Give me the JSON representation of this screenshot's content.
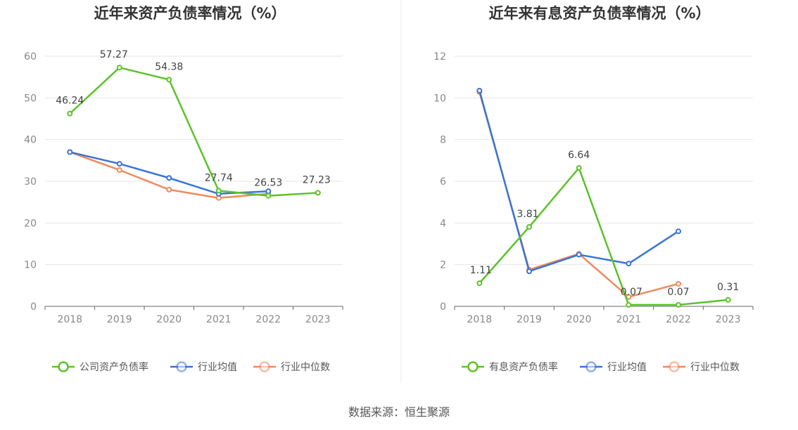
{
  "source_text": "数据来源：恒生聚源",
  "chart_data": [
    {
      "type": "line",
      "title": "近年来资产负债率情况（%）",
      "categories": [
        "2018",
        "2019",
        "2020",
        "2021",
        "2022",
        "2023"
      ],
      "ylim": [
        0,
        60
      ],
      "yticks": [
        0,
        10,
        20,
        30,
        40,
        50,
        60
      ],
      "grid": true,
      "legend_position": "bottom",
      "series": [
        {
          "name": "公司资产负债率",
          "color": "#5cc229",
          "values": [
            46.24,
            57.27,
            54.38,
            27.74,
            26.53,
            27.23
          ],
          "labels": [
            "46.24",
            "57.27",
            "54.38",
            "27.74",
            "26.53",
            "27.23"
          ]
        },
        {
          "name": "行业均值",
          "color": "#3a74d6",
          "values": [
            37.0,
            34.2,
            30.8,
            27.0,
            27.6,
            null
          ]
        },
        {
          "name": "行业中位数",
          "color": "#ef8a5d",
          "values": [
            37.0,
            32.7,
            28.0,
            26.0,
            27.0,
            null
          ]
        }
      ]
    },
    {
      "type": "line",
      "title": "近年来有息资产负债率情况（%）",
      "categories": [
        "2018",
        "2019",
        "2020",
        "2021",
        "2022",
        "2023"
      ],
      "ylim": [
        0,
        12
      ],
      "yticks": [
        0,
        2,
        4,
        6,
        8,
        10,
        12
      ],
      "grid": true,
      "legend_position": "bottom",
      "series": [
        {
          "name": "有息资产负债率",
          "color": "#5cc229",
          "values": [
            1.11,
            3.81,
            6.64,
            0.07,
            0.07,
            0.31
          ],
          "labels": [
            "1.11",
            "3.81",
            "6.64",
            "0.07",
            "0.07",
            "0.31"
          ]
        },
        {
          "name": "行业均值",
          "color": "#3a74d6",
          "values": [
            10.35,
            1.68,
            2.48,
            2.05,
            3.6,
            null
          ]
        },
        {
          "name": "行业中位数",
          "color": "#ef8a5d",
          "values": [
            10.28,
            1.76,
            2.52,
            0.45,
            1.08,
            null
          ]
        }
      ]
    }
  ]
}
